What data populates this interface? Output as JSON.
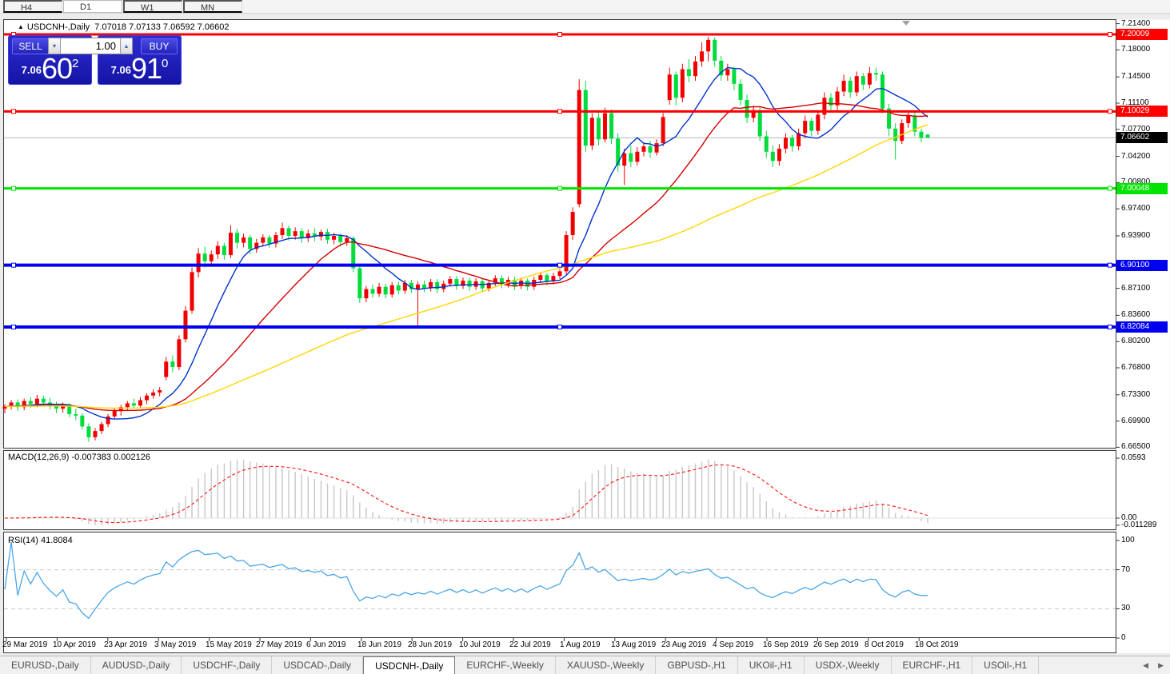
{
  "toolbar": {
    "timeframes": [
      {
        "label": "H4",
        "active": false
      },
      {
        "label": "D1",
        "active": true
      },
      {
        "label": "W1",
        "active": false
      },
      {
        "label": "MN",
        "active": false
      }
    ]
  },
  "chart": {
    "title": {
      "marker": "▲",
      "symbol": "USDCNH-,Daily",
      "ohlc": "7.07018 7.07133 7.06592 7.06602"
    },
    "trade_panel": {
      "sell_label": "SELL",
      "buy_label": "BUY",
      "volume": "1.00",
      "sell_price": {
        "small": "7.06",
        "big": "60",
        "sup": "2"
      },
      "buy_price": {
        "small": "7.06",
        "big": "91",
        "sup": "0"
      }
    }
  },
  "chart_data": {
    "type": "candlestick",
    "symbol": "USDCNH",
    "timeframe": "Daily",
    "title": "USDCNH-,Daily",
    "ohlc_display": {
      "open": "7.07018",
      "high": "7.07133",
      "low": "7.06592",
      "close": "7.06602"
    },
    "colors": {
      "bull": "#f20000",
      "bear": "#00dc3c",
      "ma_fast": "#0033cc",
      "ma_mid": "#d40000",
      "ma_slow": "#ffd700",
      "macd_bar": "#c8c8c8",
      "macd_signal": "#ff2222",
      "rsi": "#4aa6e8",
      "hline_red": "#ff0000",
      "hline_green": "#00e400",
      "hline_blue": "#0000f0",
      "current_line": "#b8b8b8"
    },
    "moving_averages": [
      {
        "period": 10
      },
      {
        "period": 25
      },
      {
        "period": 60
      }
    ],
    "price_ticks": [
      "7.21400",
      "7.18000",
      "7.14500",
      "7.11100",
      "7.07700",
      "7.04200",
      "7.00800",
      "6.97400",
      "6.93900",
      "6.87100",
      "6.83600",
      "6.80200",
      "6.76800",
      "6.73300",
      "6.69900",
      "6.66500"
    ],
    "price_lines": [
      {
        "price": 7.20009,
        "label": "7.20009",
        "color": "#ff0000",
        "width": 3
      },
      {
        "price": 7.10029,
        "label": "7.10029",
        "color": "#ff0000",
        "width": 3
      },
      {
        "price": 7.00048,
        "label": "7.00048",
        "color": "#00e400",
        "width": 3
      },
      {
        "price": 6.901,
        "label": "6.90100",
        "color": "#0000f0",
        "width": 4
      },
      {
        "price": 6.82084,
        "label": "6.82084",
        "color": "#0000f0",
        "width": 4
      }
    ],
    "current_price": {
      "price": 7.06602,
      "label": "7.06602",
      "badge_color": "#000000"
    },
    "date_ticks": [
      "29 Mar 2019",
      "10 Apr 2019",
      "23 Apr 2019",
      "3 May 2019",
      "15 May 2019",
      "27 May 2019",
      "6 Jun 2019",
      "18 Jun 2019",
      "28 Jun 2019",
      "10 Jul 2019",
      "22 Jul 2019",
      "1 Aug 2019",
      "13 Aug 2019",
      "23 Aug 2019",
      "4 Sep 2019",
      "16 Sep 2019",
      "26 Sep 2019",
      "8 Oct 2019",
      "18 Oct 2019"
    ],
    "indicators": {
      "macd": {
        "label": "MACD(12,26,9)",
        "values_text": "-0.007383 0.002126",
        "fast": 12,
        "slow": 26,
        "signal": 9,
        "axis": [
          "0.0593",
          "0.00",
          "-0.011289"
        ],
        "axis_values": [
          0.0593,
          0.0,
          -0.011289
        ]
      },
      "rsi": {
        "label": "RSI(14)",
        "value_text": "41.8084",
        "period": 14,
        "levels": [
          70,
          30
        ],
        "axis": [
          "100",
          "70",
          "30",
          "0"
        ],
        "axis_values": [
          100,
          70,
          30,
          0
        ]
      }
    },
    "candles": [
      [
        6.715,
        6.721,
        6.709,
        6.718
      ],
      [
        6.718,
        6.726,
        6.714,
        6.723
      ],
      [
        6.723,
        6.727,
        6.712,
        6.717
      ],
      [
        6.717,
        6.728,
        6.713,
        6.725
      ],
      [
        6.725,
        6.73,
        6.716,
        6.721
      ],
      [
        6.721,
        6.733,
        6.717,
        6.728
      ],
      [
        6.728,
        6.732,
        6.718,
        6.723
      ],
      [
        6.723,
        6.729,
        6.714,
        6.719
      ],
      [
        6.719,
        6.724,
        6.709,
        6.715
      ],
      [
        6.715,
        6.723,
        6.71,
        6.719
      ],
      [
        6.719,
        6.722,
        6.704,
        6.708
      ],
      [
        6.708,
        6.715,
        6.7,
        6.706
      ],
      [
        6.706,
        6.709,
        6.688,
        6.692
      ],
      [
        6.692,
        6.696,
        6.672,
        6.678
      ],
      [
        6.678,
        6.69,
        6.674,
        6.686
      ],
      [
        6.686,
        6.698,
        6.682,
        6.695
      ],
      [
        6.695,
        6.708,
        6.691,
        6.705
      ],
      [
        6.705,
        6.716,
        6.701,
        6.712
      ],
      [
        6.712,
        6.72,
        6.706,
        6.717
      ],
      [
        6.717,
        6.725,
        6.712,
        6.722
      ],
      [
        6.722,
        6.728,
        6.715,
        6.719
      ],
      [
        6.719,
        6.73,
        6.716,
        6.726
      ],
      [
        6.726,
        6.735,
        6.721,
        6.732
      ],
      [
        6.732,
        6.74,
        6.728,
        6.736
      ],
      [
        6.736,
        6.743,
        6.731,
        6.739
      ],
      [
        6.756,
        6.782,
        6.752,
        6.776
      ],
      [
        6.776,
        6.784,
        6.762,
        6.769
      ],
      [
        6.769,
        6.81,
        6.765,
        6.805
      ],
      [
        6.805,
        6.848,
        6.801,
        6.842
      ],
      [
        6.842,
        6.898,
        6.838,
        6.892
      ],
      [
        6.892,
        6.923,
        6.885,
        6.916
      ],
      [
        6.916,
        6.925,
        6.898,
        6.906
      ],
      [
        6.906,
        6.92,
        6.9,
        6.915
      ],
      [
        6.915,
        6.932,
        6.909,
        6.926
      ],
      [
        6.926,
        6.93,
        6.908,
        6.914
      ],
      [
        6.914,
        6.9525,
        6.91,
        6.943
      ],
      [
        6.943,
        6.948,
        6.923,
        6.93
      ],
      [
        6.93,
        6.942,
        6.924,
        6.937
      ],
      [
        6.937,
        6.94,
        6.915,
        6.922
      ],
      [
        6.922,
        6.935,
        6.917,
        6.93
      ],
      [
        6.93,
        6.941,
        6.925,
        6.937
      ],
      [
        6.937,
        6.94,
        6.923,
        6.929
      ],
      [
        6.929,
        6.944,
        6.924,
        6.94
      ],
      [
        6.94,
        6.956,
        6.935,
        6.949
      ],
      [
        6.949,
        6.952,
        6.933,
        6.939
      ],
      [
        6.939,
        6.95,
        6.934,
        6.945
      ],
      [
        6.945,
        6.949,
        6.93,
        6.936
      ],
      [
        6.936,
        6.947,
        6.931,
        6.942
      ],
      [
        6.942,
        6.949,
        6.932,
        6.938
      ],
      [
        6.938,
        6.947,
        6.933,
        6.944
      ],
      [
        6.944,
        6.948,
        6.929,
        6.934
      ],
      [
        6.934,
        6.943,
        6.928,
        6.939
      ],
      [
        6.939,
        6.942,
        6.925,
        6.931
      ],
      [
        6.931,
        6.94,
        6.926,
        6.936
      ],
      [
        6.936,
        6.939,
        6.892,
        6.897
      ],
      [
        6.897,
        6.901,
        6.852,
        6.858
      ],
      [
        6.858,
        6.874,
        6.853,
        6.87
      ],
      [
        6.87,
        6.876,
        6.859,
        6.864
      ],
      [
        6.864,
        6.878,
        6.86,
        6.873
      ],
      [
        6.873,
        6.877,
        6.858,
        6.863
      ],
      [
        6.863,
        6.879,
        6.859,
        6.875
      ],
      [
        6.875,
        6.88,
        6.863,
        6.868
      ],
      [
        6.868,
        6.882,
        6.864,
        6.878
      ],
      [
        6.878,
        6.882,
        6.865,
        6.87
      ],
      [
        6.87,
        6.88,
        6.8225,
        6.876
      ],
      [
        6.876,
        6.881,
        6.866,
        6.871
      ],
      [
        6.871,
        6.883,
        6.867,
        6.879
      ],
      [
        6.879,
        6.883,
        6.865,
        6.87
      ],
      [
        6.87,
        6.881,
        6.866,
        6.877
      ],
      [
        6.877,
        6.887,
        6.873,
        6.883
      ],
      [
        6.883,
        6.887,
        6.869,
        6.874
      ],
      [
        6.874,
        6.885,
        6.87,
        6.881
      ],
      [
        6.881,
        6.885,
        6.868,
        6.873
      ],
      [
        6.873,
        6.884,
        6.869,
        6.88
      ],
      [
        6.88,
        6.884,
        6.866,
        6.871
      ],
      [
        6.871,
        6.882,
        6.867,
        6.878
      ],
      [
        6.878,
        6.888,
        6.874,
        6.884
      ],
      [
        6.884,
        6.888,
        6.871,
        6.876
      ],
      [
        6.876,
        6.886,
        6.872,
        6.882
      ],
      [
        6.882,
        6.886,
        6.869,
        6.874
      ],
      [
        6.874,
        6.885,
        6.87,
        6.881
      ],
      [
        6.881,
        6.884,
        6.868,
        6.873
      ],
      [
        6.873,
        6.886,
        6.869,
        6.882
      ],
      [
        6.882,
        6.892,
        6.878,
        6.888
      ],
      [
        6.888,
        6.891,
        6.875,
        6.88
      ],
      [
        6.88,
        6.891,
        6.876,
        6.887
      ],
      [
        6.887,
        6.896,
        6.883,
        6.893
      ],
      [
        6.893,
        6.945,
        6.889,
        6.94
      ],
      [
        6.94,
        6.976,
        6.934,
        6.97
      ],
      [
        6.98,
        7.142,
        6.976,
        7.128
      ],
      [
        7.128,
        7.14,
        7.048,
        7.056
      ],
      [
        7.056,
        7.098,
        7.05,
        7.092
      ],
      [
        7.092,
        7.1,
        7.056,
        7.064
      ],
      [
        7.064,
        7.105,
        7.06,
        7.098
      ],
      [
        7.098,
        7.103,
        7.058,
        7.065
      ],
      [
        7.065,
        7.072,
        7.022,
        7.03
      ],
      [
        7.03,
        7.052,
        7.005,
        7.046
      ],
      [
        7.046,
        7.056,
        7.028,
        7.035
      ],
      [
        7.035,
        7.054,
        7.03,
        7.048
      ],
      [
        7.048,
        7.06,
        7.042,
        7.055
      ],
      [
        7.055,
        7.062,
        7.04,
        7.047
      ],
      [
        7.047,
        7.064,
        7.043,
        7.059
      ],
      [
        7.059,
        7.098,
        7.055,
        7.093
      ],
      [
        7.115,
        7.157,
        7.109,
        7.148
      ],
      [
        7.148,
        7.152,
        7.108,
        7.118
      ],
      [
        7.118,
        7.162,
        7.112,
        7.155
      ],
      [
        7.155,
        7.168,
        7.138,
        7.146
      ],
      [
        7.146,
        7.172,
        7.14,
        7.165
      ],
      [
        7.165,
        7.19,
        7.158,
        7.178
      ],
      [
        7.178,
        7.197,
        7.165,
        7.193
      ],
      [
        7.193,
        7.196,
        7.158,
        7.166
      ],
      [
        7.166,
        7.172,
        7.14,
        7.147
      ],
      [
        7.147,
        7.162,
        7.14,
        7.155
      ],
      [
        7.155,
        7.158,
        7.128,
        7.136
      ],
      [
        7.136,
        7.142,
        7.108,
        7.115
      ],
      [
        7.115,
        7.122,
        7.085,
        7.092
      ],
      [
        7.092,
        7.108,
        7.086,
        7.102
      ],
      [
        7.102,
        7.106,
        7.062,
        7.068
      ],
      [
        7.068,
        7.075,
        7.04,
        7.048
      ],
      [
        7.048,
        7.056,
        7.028,
        7.036
      ],
      [
        7.036,
        7.058,
        7.03,
        7.052
      ],
      [
        7.052,
        7.072,
        7.046,
        7.066
      ],
      [
        7.066,
        7.07,
        7.048,
        7.055
      ],
      [
        7.055,
        7.078,
        7.05,
        7.072
      ],
      [
        7.072,
        7.095,
        7.066,
        7.088
      ],
      [
        7.088,
        7.092,
        7.068,
        7.075
      ],
      [
        7.075,
        7.102,
        7.07,
        7.096
      ],
      [
        7.096,
        7.125,
        7.09,
        7.118
      ],
      [
        7.118,
        7.124,
        7.1,
        7.108
      ],
      [
        7.108,
        7.132,
        7.102,
        7.126
      ],
      [
        7.126,
        7.148,
        7.12,
        7.14
      ],
      [
        7.14,
        7.145,
        7.118,
        7.125
      ],
      [
        7.125,
        7.152,
        7.12,
        7.146
      ],
      [
        7.146,
        7.15,
        7.128,
        7.135
      ],
      [
        7.135,
        7.158,
        7.13,
        7.15
      ],
      [
        7.15,
        7.157,
        7.14,
        7.148
      ],
      [
        7.148,
        7.152,
        7.098,
        7.104
      ],
      [
        7.104,
        7.11,
        7.068,
        7.078
      ],
      [
        7.078,
        7.085,
        7.038,
        7.062
      ],
      [
        7.062,
        7.09,
        7.058,
        7.085
      ],
      [
        7.085,
        7.1,
        7.079,
        7.095
      ],
      [
        7.095,
        7.099,
        7.068,
        7.074
      ],
      [
        7.074,
        7.078,
        7.06,
        7.066
      ],
      [
        7.0702,
        7.0713,
        7.0659,
        7.066
      ]
    ]
  },
  "tabs": {
    "items": [
      {
        "label": "EURUSD-,Daily",
        "active": false
      },
      {
        "label": "AUDUSD-,Daily",
        "active": false
      },
      {
        "label": "USDCHF-,Daily",
        "active": false
      },
      {
        "label": "USDCAD-,Daily",
        "active": false
      },
      {
        "label": "USDCNH-,Daily",
        "active": true
      },
      {
        "label": "EURCHF-,Weekly",
        "active": false
      },
      {
        "label": "XAUUSD-,Weekly",
        "active": false
      },
      {
        "label": "GBPUSD-,H1",
        "active": false
      },
      {
        "label": "UKOil-,H1",
        "active": false
      },
      {
        "label": "USDX-,Weekly",
        "active": false
      },
      {
        "label": "EURCHF-,H1",
        "active": false
      },
      {
        "label": "USOil-,H1",
        "active": false
      }
    ],
    "scroll_left": "◀",
    "scroll_right": "▶"
  }
}
